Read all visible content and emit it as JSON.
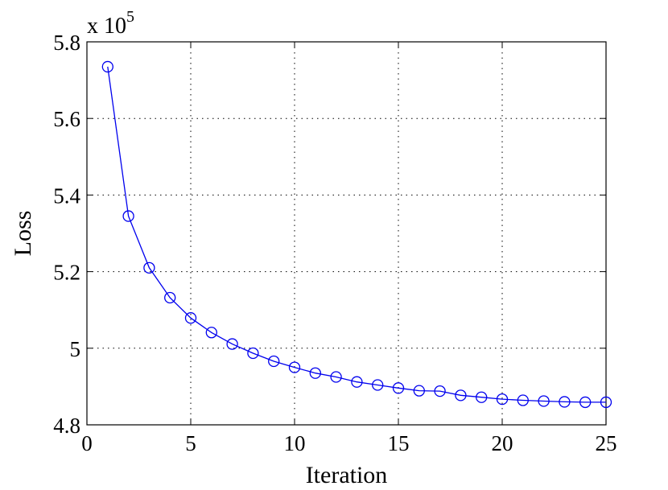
{
  "chart_data": {
    "type": "line",
    "xlabel": "Iteration",
    "ylabel": "Loss",
    "y_multiplier": {
      "base": "x 10",
      "exponent": "5"
    },
    "xlim": [
      0,
      25
    ],
    "ylim": [
      4.8,
      5.8
    ],
    "x_ticks": [
      "0",
      "5",
      "10",
      "15",
      "20",
      "25"
    ],
    "y_ticks": [
      "4.8",
      "5",
      "5.2",
      "5.4",
      "5.6",
      "5.8"
    ],
    "grid": true,
    "grid_style": "dotted",
    "series": [
      {
        "color": "#0000ee",
        "marker": "circle-open",
        "x": [
          1,
          2,
          3,
          4,
          5,
          6,
          7,
          8,
          9,
          10,
          11,
          12,
          13,
          14,
          15,
          16,
          17,
          18,
          19,
          20,
          21,
          22,
          23,
          24,
          25
        ],
        "y": [
          5.735,
          5.345,
          5.21,
          5.132,
          5.079,
          5.041,
          5.011,
          4.987,
          4.966,
          4.95,
          4.935,
          4.925,
          4.912,
          4.904,
          4.896,
          4.889,
          4.888,
          4.877,
          4.872,
          4.867,
          4.864,
          4.862,
          4.86,
          4.859,
          4.859
        ]
      }
    ]
  }
}
